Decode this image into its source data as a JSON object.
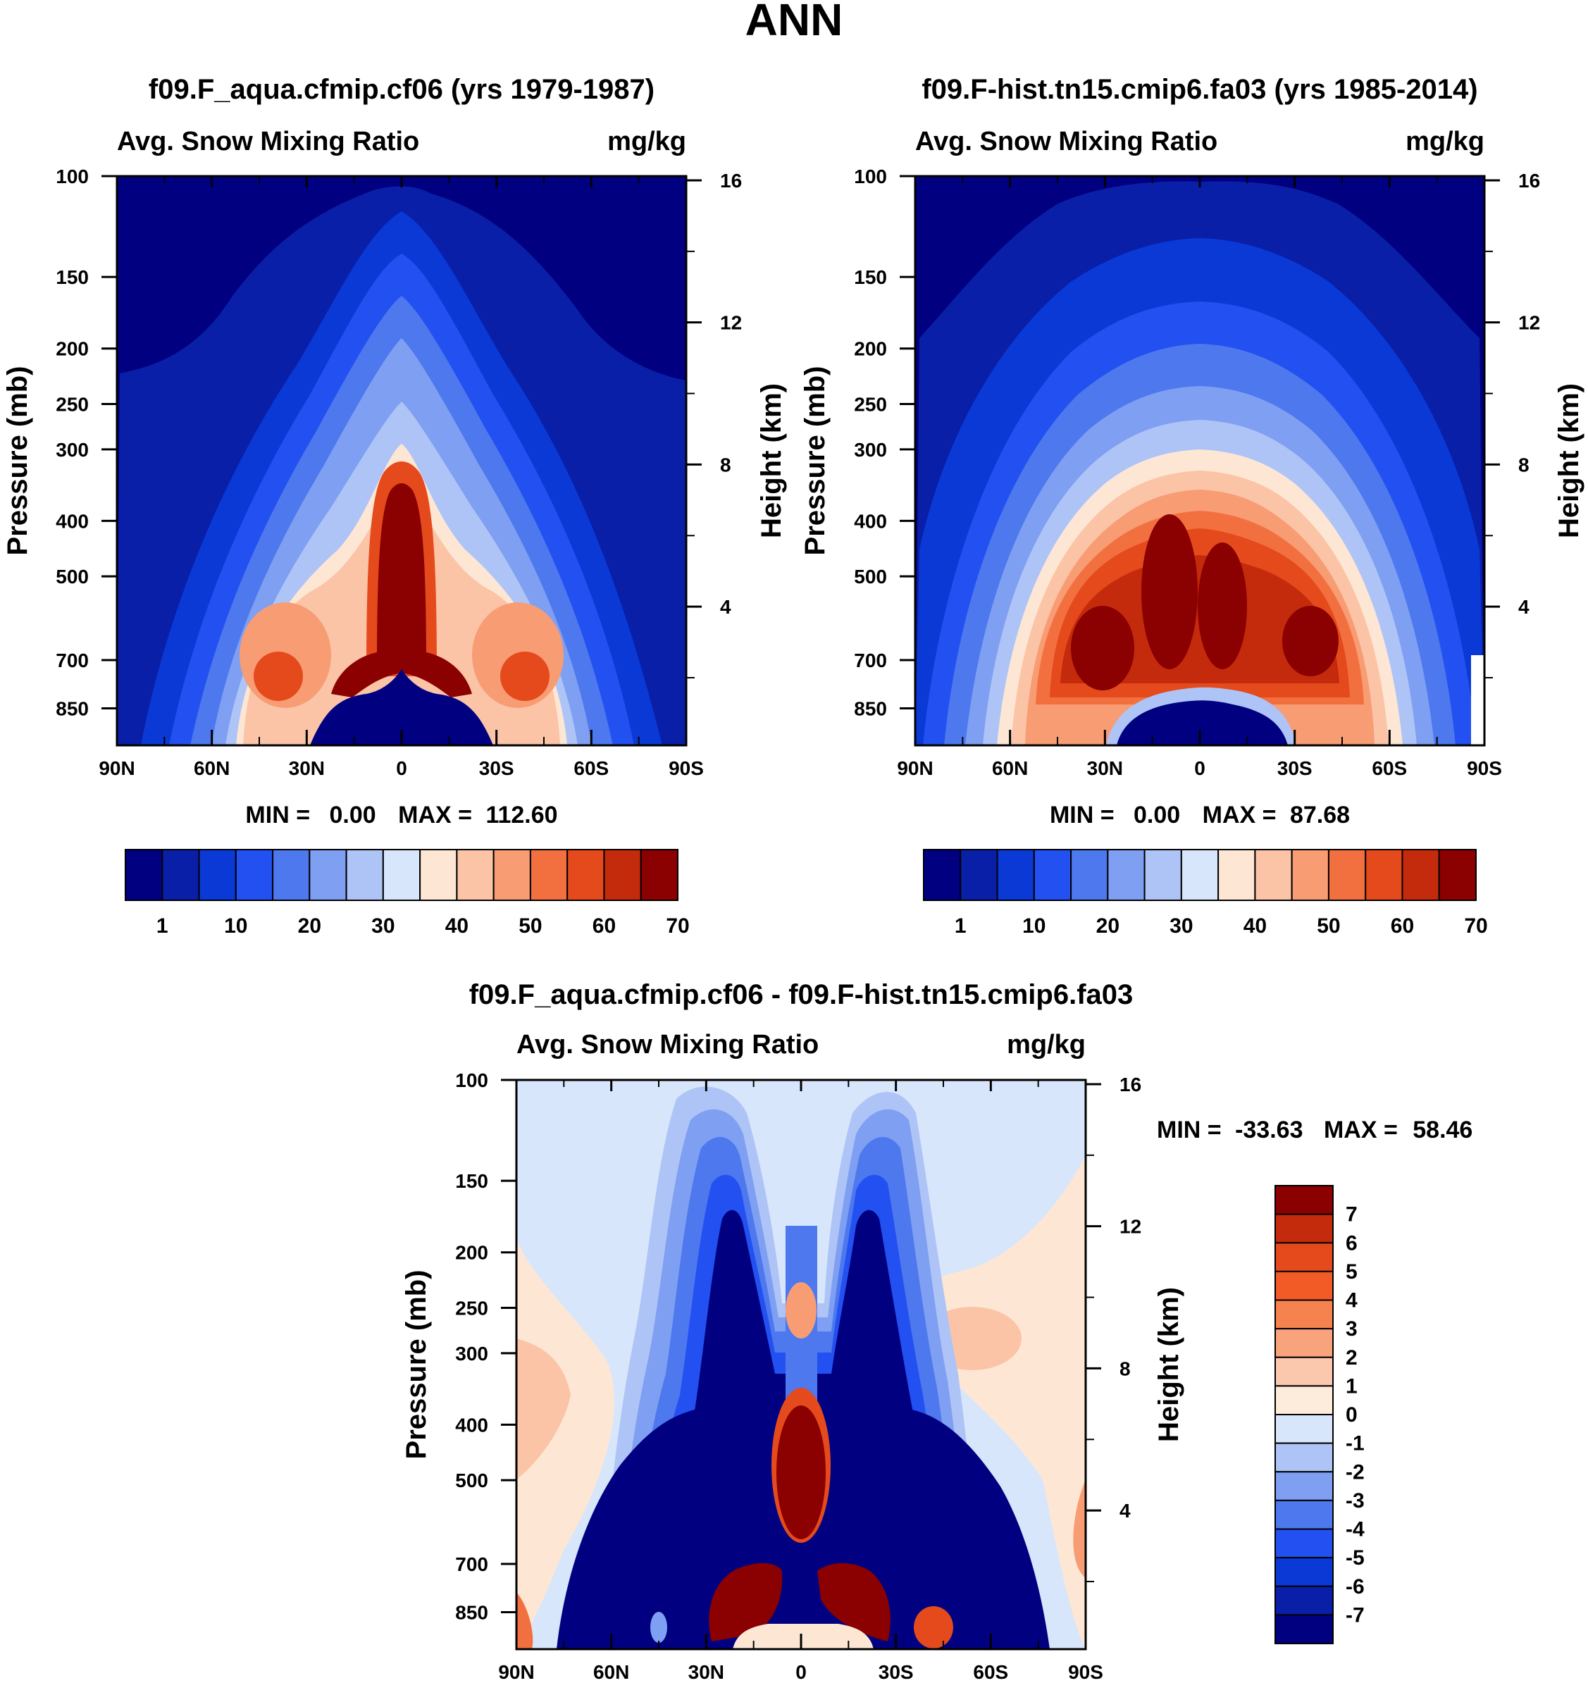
{
  "figure": {
    "title": "ANN",
    "variable": "Avg. Snow Mixing Ratio",
    "units": "mg/kg",
    "ylabel_left": "Pressure (mb)",
    "ylabel_right": "Height (km)"
  },
  "chart_data": [
    {
      "type": "heatmap",
      "id": "panel1",
      "title": "f09.F_aqua.cfmip.cf06 (yrs 1979-1987)",
      "subtitle_left": "Avg. Snow Mixing Ratio",
      "subtitle_right": "mg/kg",
      "xlabel": "",
      "ylabel": "Pressure (mb)",
      "ylabel_right": "Height (km)",
      "x_ticks": [
        -90,
        -60,
        -30,
        0,
        30,
        60,
        90
      ],
      "x_tick_labels": [
        "90N",
        "60N",
        "30N",
        "0",
        "30S",
        "60S",
        "90S"
      ],
      "y_ticks": [
        100,
        150,
        200,
        250,
        300,
        400,
        500,
        700,
        850
      ],
      "y_tick_labels": [
        "100",
        "150",
        "200",
        "250",
        "300",
        "400",
        "500",
        "700",
        "850"
      ],
      "y_right_ticks": [
        16,
        12,
        8,
        4
      ],
      "y_right_tick_labels": [
        "16",
        "12",
        "8",
        "4"
      ],
      "ylim": [
        100,
        1000
      ],
      "xlim": [
        -90,
        90
      ],
      "stats": {
        "min_label": "MIN =",
        "min": "0.00",
        "max_label": "MAX =",
        "max": "112.60"
      },
      "colorbar": {
        "orientation": "horizontal",
        "levels": [
          1,
          5,
          10,
          15,
          20,
          25,
          30,
          35,
          40,
          45,
          50,
          55,
          60,
          65,
          70
        ],
        "labels": [
          "1",
          "10",
          "20",
          "30",
          "40",
          "50",
          "60",
          "70"
        ],
        "colors": [
          "#000080",
          "#0a1fa8",
          "#0a39d6",
          "#2350f0",
          "#4d78ee",
          "#7e9ff2",
          "#aec4f7",
          "#d8e6fb",
          "#fde7d4",
          "#fbc4a6",
          "#f89c74",
          "#f2703f",
          "#e54a1c",
          "#c42a0c",
          "#8b0000"
        ]
      }
    },
    {
      "type": "heatmap",
      "id": "panel2",
      "title": "f09.F-hist.tn15.cmip6.fa03 (yrs 1985-2014)",
      "subtitle_left": "Avg. Snow Mixing Ratio",
      "subtitle_right": "mg/kg",
      "xlabel": "",
      "ylabel": "Pressure (mb)",
      "ylabel_right": "Height (km)",
      "x_ticks": [
        -90,
        -60,
        -30,
        0,
        30,
        60,
        90
      ],
      "x_tick_labels": [
        "90N",
        "60N",
        "30N",
        "0",
        "30S",
        "60S",
        "90S"
      ],
      "y_ticks": [
        100,
        150,
        200,
        250,
        300,
        400,
        500,
        700,
        850
      ],
      "y_tick_labels": [
        "100",
        "150",
        "200",
        "250",
        "300",
        "400",
        "500",
        "700",
        "850"
      ],
      "y_right_ticks": [
        16,
        12,
        8,
        4
      ],
      "y_right_tick_labels": [
        "16",
        "12",
        "8",
        "4"
      ],
      "ylim": [
        100,
        1000
      ],
      "xlim": [
        -90,
        90
      ],
      "stats": {
        "min_label": "MIN =",
        "min": "0.00",
        "max_label": "MAX =",
        "max": "87.68"
      },
      "colorbar": {
        "orientation": "horizontal",
        "levels": [
          1,
          5,
          10,
          15,
          20,
          25,
          30,
          35,
          40,
          45,
          50,
          55,
          60,
          65,
          70
        ],
        "labels": [
          "1",
          "10",
          "20",
          "30",
          "40",
          "50",
          "60",
          "70"
        ],
        "colors": [
          "#000080",
          "#0a1fa8",
          "#0a39d6",
          "#2350f0",
          "#4d78ee",
          "#7e9ff2",
          "#aec4f7",
          "#d8e6fb",
          "#fde7d4",
          "#fbc4a6",
          "#f89c74",
          "#f2703f",
          "#e54a1c",
          "#c42a0c",
          "#8b0000"
        ]
      }
    },
    {
      "type": "heatmap",
      "id": "panel3",
      "title": "f09.F_aqua.cfmip.cf06 - f09.F-hist.tn15.cmip6.fa03",
      "subtitle_left": "Avg. Snow Mixing Ratio",
      "subtitle_right": "mg/kg",
      "xlabel": "",
      "ylabel": "Pressure (mb)",
      "ylabel_right": "Height (km)",
      "x_ticks": [
        -90,
        -60,
        -30,
        0,
        30,
        60,
        90
      ],
      "x_tick_labels": [
        "90N",
        "60N",
        "30N",
        "0",
        "30S",
        "60S",
        "90S"
      ],
      "y_ticks": [
        100,
        150,
        200,
        250,
        300,
        400,
        500,
        700,
        850
      ],
      "y_tick_labels": [
        "100",
        "150",
        "200",
        "250",
        "300",
        "400",
        "500",
        "700",
        "850"
      ],
      "y_right_ticks": [
        16,
        12,
        8,
        4
      ],
      "y_right_tick_labels": [
        "16",
        "12",
        "8",
        "4"
      ],
      "ylim": [
        100,
        1000
      ],
      "xlim": [
        -90,
        90
      ],
      "stats": {
        "min_label": "MIN =",
        "min": "-33.63",
        "max_label": "MAX =",
        "max": "58.46"
      },
      "colorbar": {
        "orientation": "vertical",
        "levels": [
          7,
          6,
          5,
          4,
          3,
          2,
          1,
          0,
          -1,
          -2,
          -3,
          -4,
          -5,
          -6,
          -7
        ],
        "labels": [
          "7",
          "6",
          "5",
          "4",
          "3",
          "2",
          "1",
          "0",
          "-1",
          "-2",
          "-3",
          "-4",
          "-5",
          "-6",
          "-7"
        ],
        "colors": [
          "#8b0000",
          "#c42a0c",
          "#e54a1c",
          "#f25a26",
          "#f6824f",
          "#f9a37c",
          "#fbc8ad",
          "#fdebdc",
          "#d8e6fb",
          "#aec4f7",
          "#7e9ff2",
          "#4d78ee",
          "#2350f0",
          "#0a39d6",
          "#0a1fa8",
          "#000080"
        ]
      }
    }
  ]
}
